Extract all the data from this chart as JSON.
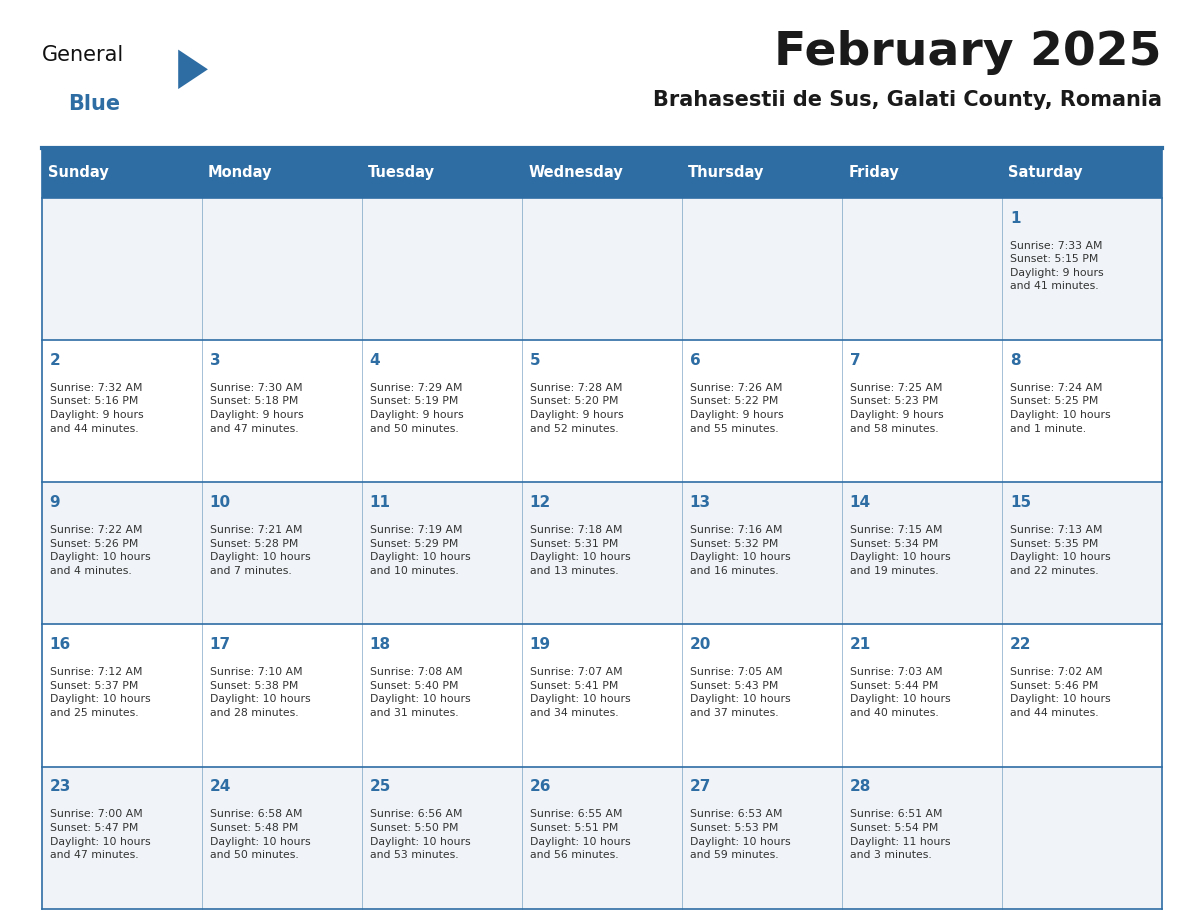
{
  "title": "February 2025",
  "subtitle": "Brahasestii de Sus, Galati County, Romania",
  "header_bg": "#2E6DA4",
  "header_text": "#FFFFFF",
  "row_bg_odd": "#F0F4F8",
  "row_bg_even": "#FFFFFF",
  "cell_border": "#2E6DA4",
  "day_headers": [
    "Sunday",
    "Monday",
    "Tuesday",
    "Wednesday",
    "Thursday",
    "Friday",
    "Saturday"
  ],
  "title_color": "#1a1a1a",
  "subtitle_color": "#1a1a1a",
  "day_number_color": "#2E6DA4",
  "cell_text_color": "#333333",
  "logo_general_color": "#111111",
  "logo_blue_color": "#2E6DA4",
  "weeks": [
    [
      {
        "day": null,
        "text": ""
      },
      {
        "day": null,
        "text": ""
      },
      {
        "day": null,
        "text": ""
      },
      {
        "day": null,
        "text": ""
      },
      {
        "day": null,
        "text": ""
      },
      {
        "day": null,
        "text": ""
      },
      {
        "day": 1,
        "text": "Sunrise: 7:33 AM\nSunset: 5:15 PM\nDaylight: 9 hours\nand 41 minutes."
      }
    ],
    [
      {
        "day": 2,
        "text": "Sunrise: 7:32 AM\nSunset: 5:16 PM\nDaylight: 9 hours\nand 44 minutes."
      },
      {
        "day": 3,
        "text": "Sunrise: 7:30 AM\nSunset: 5:18 PM\nDaylight: 9 hours\nand 47 minutes."
      },
      {
        "day": 4,
        "text": "Sunrise: 7:29 AM\nSunset: 5:19 PM\nDaylight: 9 hours\nand 50 minutes."
      },
      {
        "day": 5,
        "text": "Sunrise: 7:28 AM\nSunset: 5:20 PM\nDaylight: 9 hours\nand 52 minutes."
      },
      {
        "day": 6,
        "text": "Sunrise: 7:26 AM\nSunset: 5:22 PM\nDaylight: 9 hours\nand 55 minutes."
      },
      {
        "day": 7,
        "text": "Sunrise: 7:25 AM\nSunset: 5:23 PM\nDaylight: 9 hours\nand 58 minutes."
      },
      {
        "day": 8,
        "text": "Sunrise: 7:24 AM\nSunset: 5:25 PM\nDaylight: 10 hours\nand 1 minute."
      }
    ],
    [
      {
        "day": 9,
        "text": "Sunrise: 7:22 AM\nSunset: 5:26 PM\nDaylight: 10 hours\nand 4 minutes."
      },
      {
        "day": 10,
        "text": "Sunrise: 7:21 AM\nSunset: 5:28 PM\nDaylight: 10 hours\nand 7 minutes."
      },
      {
        "day": 11,
        "text": "Sunrise: 7:19 AM\nSunset: 5:29 PM\nDaylight: 10 hours\nand 10 minutes."
      },
      {
        "day": 12,
        "text": "Sunrise: 7:18 AM\nSunset: 5:31 PM\nDaylight: 10 hours\nand 13 minutes."
      },
      {
        "day": 13,
        "text": "Sunrise: 7:16 AM\nSunset: 5:32 PM\nDaylight: 10 hours\nand 16 minutes."
      },
      {
        "day": 14,
        "text": "Sunrise: 7:15 AM\nSunset: 5:34 PM\nDaylight: 10 hours\nand 19 minutes."
      },
      {
        "day": 15,
        "text": "Sunrise: 7:13 AM\nSunset: 5:35 PM\nDaylight: 10 hours\nand 22 minutes."
      }
    ],
    [
      {
        "day": 16,
        "text": "Sunrise: 7:12 AM\nSunset: 5:37 PM\nDaylight: 10 hours\nand 25 minutes."
      },
      {
        "day": 17,
        "text": "Sunrise: 7:10 AM\nSunset: 5:38 PM\nDaylight: 10 hours\nand 28 minutes."
      },
      {
        "day": 18,
        "text": "Sunrise: 7:08 AM\nSunset: 5:40 PM\nDaylight: 10 hours\nand 31 minutes."
      },
      {
        "day": 19,
        "text": "Sunrise: 7:07 AM\nSunset: 5:41 PM\nDaylight: 10 hours\nand 34 minutes."
      },
      {
        "day": 20,
        "text": "Sunrise: 7:05 AM\nSunset: 5:43 PM\nDaylight: 10 hours\nand 37 minutes."
      },
      {
        "day": 21,
        "text": "Sunrise: 7:03 AM\nSunset: 5:44 PM\nDaylight: 10 hours\nand 40 minutes."
      },
      {
        "day": 22,
        "text": "Sunrise: 7:02 AM\nSunset: 5:46 PM\nDaylight: 10 hours\nand 44 minutes."
      }
    ],
    [
      {
        "day": 23,
        "text": "Sunrise: 7:00 AM\nSunset: 5:47 PM\nDaylight: 10 hours\nand 47 minutes."
      },
      {
        "day": 24,
        "text": "Sunrise: 6:58 AM\nSunset: 5:48 PM\nDaylight: 10 hours\nand 50 minutes."
      },
      {
        "day": 25,
        "text": "Sunrise: 6:56 AM\nSunset: 5:50 PM\nDaylight: 10 hours\nand 53 minutes."
      },
      {
        "day": 26,
        "text": "Sunrise: 6:55 AM\nSunset: 5:51 PM\nDaylight: 10 hours\nand 56 minutes."
      },
      {
        "day": 27,
        "text": "Sunrise: 6:53 AM\nSunset: 5:53 PM\nDaylight: 10 hours\nand 59 minutes."
      },
      {
        "day": 28,
        "text": "Sunrise: 6:51 AM\nSunset: 5:54 PM\nDaylight: 11 hours\nand 3 minutes."
      },
      {
        "day": null,
        "text": ""
      }
    ]
  ]
}
